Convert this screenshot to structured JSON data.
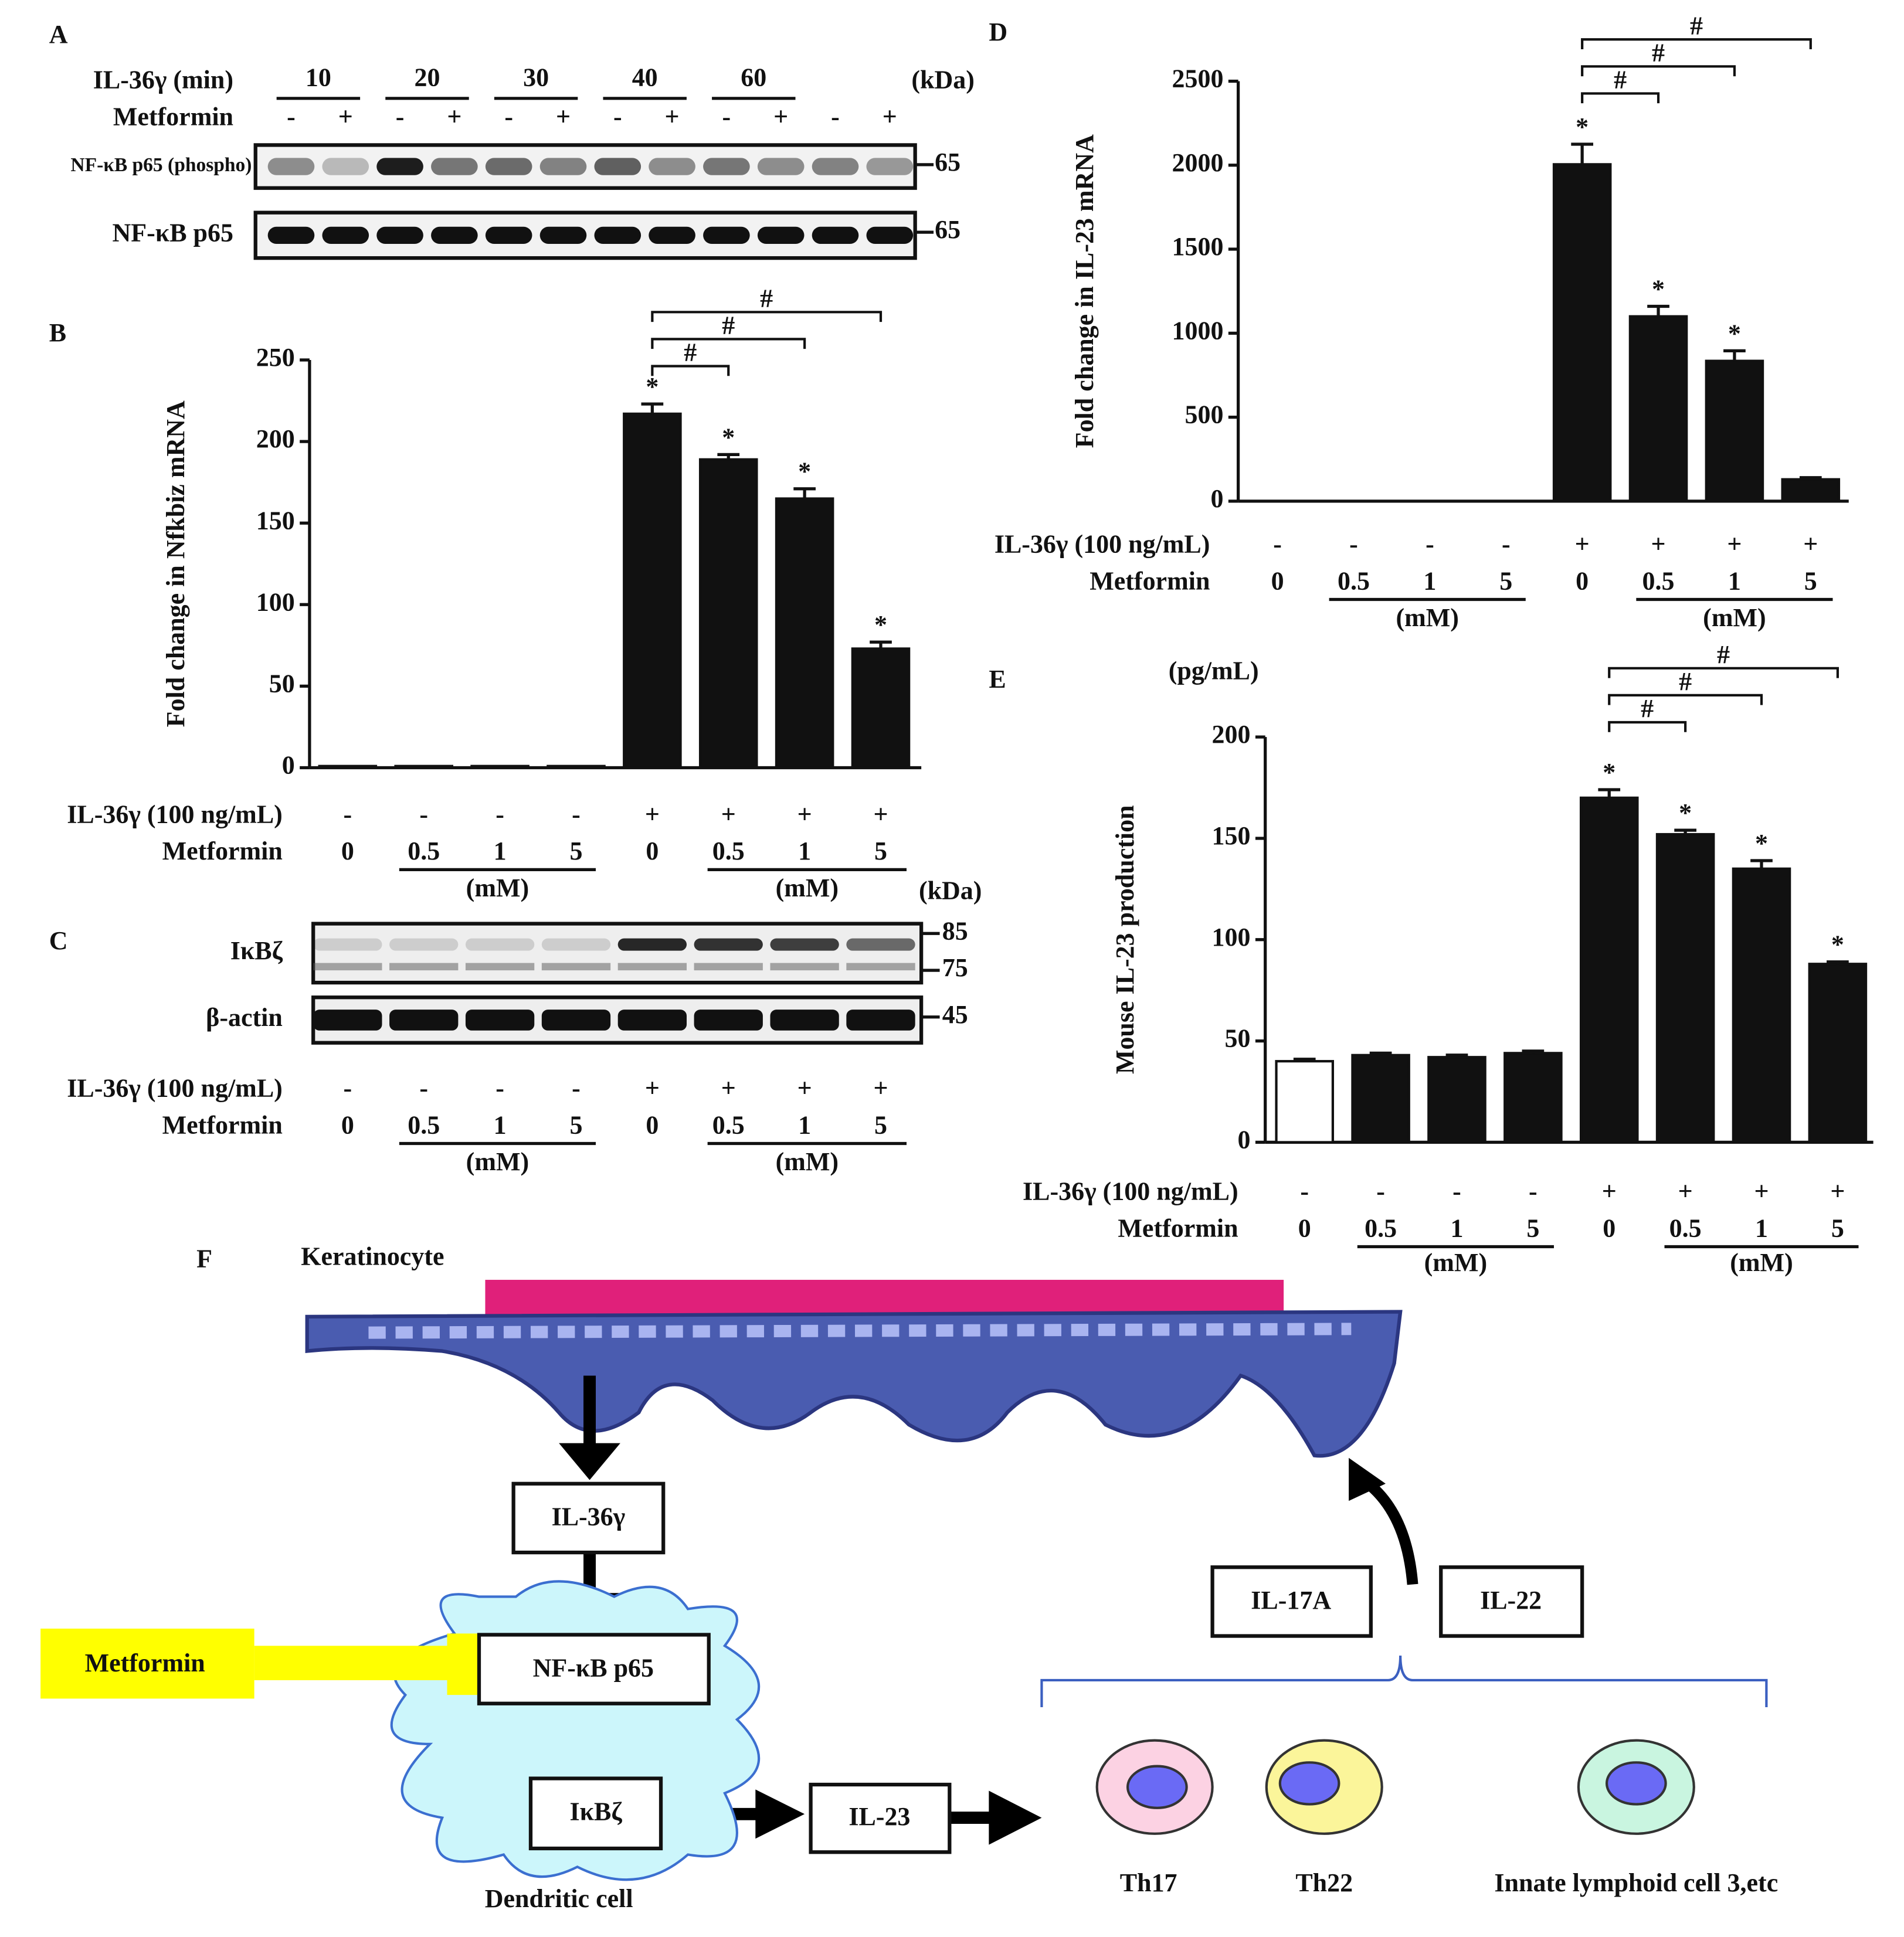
{
  "panel_labels": [
    "A",
    "B",
    "C",
    "D",
    "E",
    "F"
  ],
  "blot_a": {
    "header_label": "IL-36γ (min)",
    "times": [
      "10",
      "20",
      "30",
      "40",
      "60"
    ],
    "kda_label": "(kDa)",
    "metformin_label": "Metformin",
    "metformin": [
      "-",
      "+",
      "-",
      "+",
      "-",
      "+",
      "-",
      "+",
      "-",
      "+",
      "-",
      "+"
    ],
    "rows": [
      {
        "label": "NF-κB p65 (phospho)",
        "marker": "65"
      },
      {
        "label": "NF-κB p65",
        "marker": "65"
      }
    ]
  },
  "blot_c": {
    "kda_label": "(kDa)",
    "rows": [
      {
        "label": "IκBζ",
        "markers": [
          "85",
          "75"
        ]
      },
      {
        "label": "β-actin",
        "markers": [
          "45"
        ]
      }
    ],
    "conditions": [
      {
        "label": "IL-36γ (100 ng/mL)",
        "values": [
          "-",
          "-",
          "-",
          "-",
          "+",
          "+",
          "+",
          "+"
        ]
      },
      {
        "label": "Metformin",
        "values": [
          "0",
          "0.5",
          "1",
          "5",
          "0",
          "0.5",
          "1",
          "5"
        ]
      }
    ],
    "unit_label": "(mM)"
  },
  "chart_data": [
    {
      "type": "bar",
      "y_label": "Fold change in Nfkbiz mRNA",
      "color": "#111111",
      "categories": [
        null,
        null,
        null,
        null,
        null,
        null,
        null,
        null
      ],
      "values": [
        1,
        1,
        1,
        1,
        217,
        189,
        165,
        73
      ],
      "errors": [
        null,
        null,
        null,
        null,
        6,
        3,
        6,
        4
      ],
      "markers": [
        null,
        null,
        null,
        null,
        "*",
        "*",
        "*",
        "*"
      ],
      "brackets": [
        {
          "from": 4,
          "to": 5,
          "label": "#"
        },
        {
          "from": 4,
          "to": 6,
          "label": "#"
        },
        {
          "from": 4,
          "to": 7,
          "label": "#"
        }
      ],
      "ylim": [
        0,
        250
      ],
      "yticks": [
        0,
        50,
        100,
        150,
        200,
        250
      ],
      "conditions": [
        {
          "label": "IL-36γ (100 ng/mL)",
          "values": [
            "-",
            "-",
            "-",
            "-",
            "+",
            "+",
            "+",
            "+"
          ]
        },
        {
          "label": "Metformin",
          "values": [
            "0",
            "0.5",
            "1",
            "5",
            "0",
            "0.5",
            "1",
            "5"
          ]
        }
      ],
      "unit_label": "(mM)"
    },
    {
      "type": "bar",
      "y_label": "Fold change in IL-23 mRNA",
      "color": "#111111",
      "categories": [
        null,
        null,
        null,
        null,
        null,
        null,
        null,
        null
      ],
      "values": [
        0,
        0,
        0,
        0,
        2005,
        1100,
        835,
        130
      ],
      "errors": [
        null,
        null,
        null,
        null,
        120,
        60,
        60,
        10
      ],
      "markers": [
        null,
        null,
        null,
        null,
        "*",
        "*",
        "*",
        null
      ],
      "brackets": [
        {
          "from": 4,
          "to": 5,
          "label": "#"
        },
        {
          "from": 4,
          "to": 6,
          "label": "#"
        },
        {
          "from": 4,
          "to": 7,
          "label": "#"
        }
      ],
      "ylim": [
        0,
        2500
      ],
      "yticks": [
        0,
        500,
        1000,
        1500,
        2000,
        2500
      ],
      "conditions": [
        {
          "label": "IL-36γ (100 ng/mL)",
          "values": [
            "-",
            "-",
            "-",
            "-",
            "+",
            "+",
            "+",
            "+"
          ]
        },
        {
          "label": "Metformin",
          "values": [
            "0",
            "0.5",
            "1",
            "5",
            "0",
            "0.5",
            "1",
            "5"
          ]
        }
      ],
      "unit_label": "(mM)"
    },
    {
      "type": "bar",
      "y_label": "Mouse IL-23 production",
      "unit": "(pg/mL)",
      "colors": [
        "#ffffff",
        "#111111",
        "#111111",
        "#111111",
        "#111111",
        "#111111",
        "#111111",
        "#111111"
      ],
      "categories": [
        null,
        null,
        null,
        null,
        null,
        null,
        null,
        null
      ],
      "values": [
        40,
        43,
        42,
        44,
        170,
        152,
        135,
        88
      ],
      "errors": [
        1,
        1,
        1,
        1,
        4,
        2,
        4,
        1
      ],
      "markers": [
        null,
        null,
        null,
        null,
        "*",
        "*",
        "*",
        "*"
      ],
      "brackets": [
        {
          "from": 4,
          "to": 5,
          "label": "#"
        },
        {
          "from": 4,
          "to": 6,
          "label": "#"
        },
        {
          "from": 4,
          "to": 7,
          "label": "#"
        }
      ],
      "ylim": [
        0,
        200
      ],
      "yticks": [
        0,
        50,
        100,
        150,
        200
      ],
      "conditions": [
        {
          "label": "IL-36γ (100 ng/mL)",
          "values": [
            "-",
            "-",
            "-",
            "-",
            "+",
            "+",
            "+",
            "+"
          ]
        },
        {
          "label": "Metformin",
          "values": [
            "0",
            "0.5",
            "1",
            "5",
            "0",
            "0.5",
            "1",
            "5"
          ]
        }
      ],
      "unit_label": "(mM)"
    }
  ],
  "diagram": {
    "keratinocyte": "Keratinocyte",
    "il36": "IL-36γ",
    "nfkb": "NF-κB p65",
    "metformin": "Metformin",
    "ikbz": "IκBζ",
    "il23": "IL-23",
    "dendritic_cell": "Dendritic cell",
    "il17a": "IL-17A",
    "il22": "IL-22",
    "th17": "Th17",
    "th22": "Th22",
    "ilc3": "Innate lymphoid cell 3,etc"
  }
}
